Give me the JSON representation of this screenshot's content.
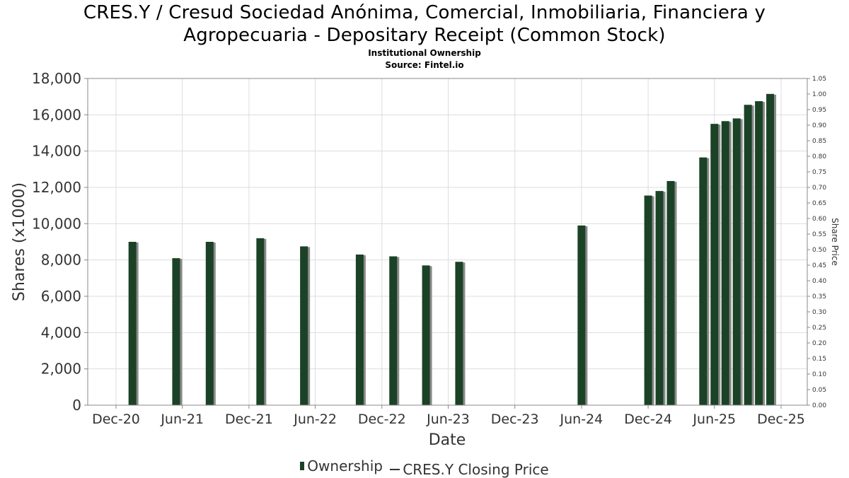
{
  "header": {
    "title_line1": "CRES.Y / Cresud Sociedad Anónima, Comercial, Inmobiliaria, Financiera y",
    "title_line2": "Agropecuaria - Depositary Receipt (Common Stock)",
    "subtitle": "Institutional Ownership",
    "source": "Source: Fintel.io"
  },
  "legend": {
    "ownership": "Ownership",
    "price": "CRES.Y Closing Price"
  },
  "colors": {
    "bar": "#1b4226",
    "bar_shadow": "#8a8a8a",
    "grid": "#dddddd",
    "axis": "#888888"
  },
  "chart_data": {
    "type": "bar",
    "title": "CRES.Y / Cresud Sociedad Anónima, Comercial, Inmobiliaria, Financiera y Agropecuaria - Depositary Receipt (Common Stock)",
    "xlabel": "Date",
    "ylabel": "Shares (x1000)",
    "y2label": "Share Price",
    "ylim": [
      0,
      18000
    ],
    "y2lim": [
      0,
      1.05
    ],
    "grid": true,
    "legend_position": "bottom",
    "x_ticks": [
      "Dec-20",
      "Jun-21",
      "Dec-21",
      "Jun-22",
      "Dec-22",
      "Jun-23",
      "Dec-23",
      "Jun-24",
      "Dec-24",
      "Jun-25",
      "Dec-25"
    ],
    "y_ticks": [
      "0",
      "2,000",
      "4,000",
      "6,000",
      "8,000",
      "10,000",
      "12,000",
      "14,000",
      "16,000",
      "18,000"
    ],
    "y2_ticks": [
      "0.00",
      "0.05",
      "0.10",
      "0.15",
      "0.20",
      "0.25",
      "0.30",
      "0.35",
      "0.40",
      "0.45",
      "0.50",
      "0.55",
      "0.60",
      "0.65",
      "0.70",
      "0.75",
      "0.80",
      "0.85",
      "0.90",
      "0.95",
      "1.00",
      "1.05"
    ],
    "series": [
      {
        "name": "Ownership",
        "points": [
          {
            "x": "2021-01-15",
            "y": 9000
          },
          {
            "x": "2021-05-15",
            "y": 8100
          },
          {
            "x": "2021-08-15",
            "y": 9000
          },
          {
            "x": "2022-01-01",
            "y": 9200
          },
          {
            "x": "2022-05-01",
            "y": 8750
          },
          {
            "x": "2022-10-01",
            "y": 8300
          },
          {
            "x": "2023-01-01",
            "y": 8200
          },
          {
            "x": "2023-04-01",
            "y": 7700
          },
          {
            "x": "2023-07-01",
            "y": 7900
          },
          {
            "x": "2024-06-01",
            "y": 9900
          },
          {
            "x": "2024-12-01",
            "y": 11550
          },
          {
            "x": "2025-01-01",
            "y": 11800
          },
          {
            "x": "2025-02-01",
            "y": 12350
          },
          {
            "x": "2025-05-01",
            "y": 13650
          },
          {
            "x": "2025-06-01",
            "y": 15500
          },
          {
            "x": "2025-07-01",
            "y": 15650
          },
          {
            "x": "2025-08-01",
            "y": 15800
          },
          {
            "x": "2025-09-01",
            "y": 16550
          },
          {
            "x": "2025-10-01",
            "y": 16750
          },
          {
            "x": "2025-11-01",
            "y": 17150
          }
        ]
      },
      {
        "name": "CRES.Y Closing Price",
        "points": []
      }
    ]
  }
}
